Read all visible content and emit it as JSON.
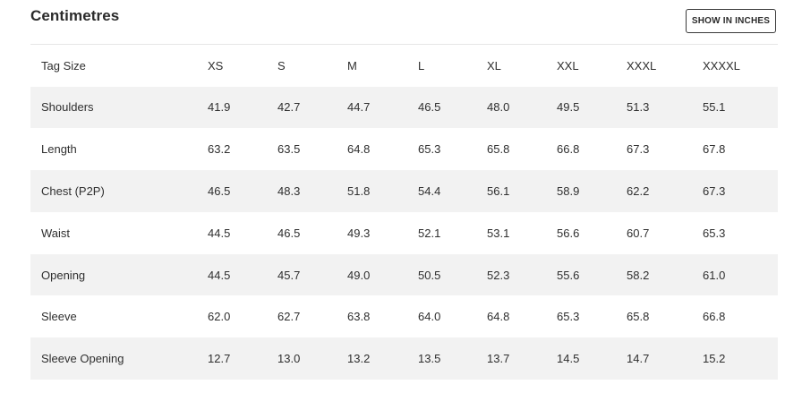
{
  "header": {
    "title": "Centimetres",
    "toggle_label": "SHOW IN INCHES"
  },
  "table": {
    "columns": [
      "Tag Size",
      "XS",
      "S",
      "M",
      "L",
      "XL",
      "XXL",
      "XXXL",
      "XXXXL"
    ],
    "rows": [
      {
        "label": "Shoulders",
        "values": [
          "41.9",
          "42.7",
          "44.7",
          "46.5",
          "48.0",
          "49.5",
          "51.3",
          "55.1"
        ]
      },
      {
        "label": "Length",
        "values": [
          "63.2",
          "63.5",
          "64.8",
          "65.3",
          "65.8",
          "66.8",
          "67.3",
          "67.8"
        ]
      },
      {
        "label": "Chest (P2P)",
        "values": [
          "46.5",
          "48.3",
          "51.8",
          "54.4",
          "56.1",
          "58.9",
          "62.2",
          "67.3"
        ]
      },
      {
        "label": "Waist",
        "values": [
          "44.5",
          "46.5",
          "49.3",
          "52.1",
          "53.1",
          "56.6",
          "60.7",
          "65.3"
        ]
      },
      {
        "label": "Opening",
        "values": [
          "44.5",
          "45.7",
          "49.0",
          "50.5",
          "52.3",
          "55.6",
          "58.2",
          "61.0"
        ]
      },
      {
        "label": "Sleeve",
        "values": [
          "62.0",
          "62.7",
          "63.8",
          "64.0",
          "64.8",
          "65.3",
          "65.8",
          "66.8"
        ]
      },
      {
        "label": "Sleeve Opening",
        "values": [
          "12.7",
          "13.0",
          "13.2",
          "13.5",
          "13.7",
          "14.5",
          "14.7",
          "15.2"
        ]
      }
    ]
  },
  "colors": {
    "stripe": "#f2f2f2",
    "text": "#2b2b2b",
    "border": "#3a3a3a"
  }
}
